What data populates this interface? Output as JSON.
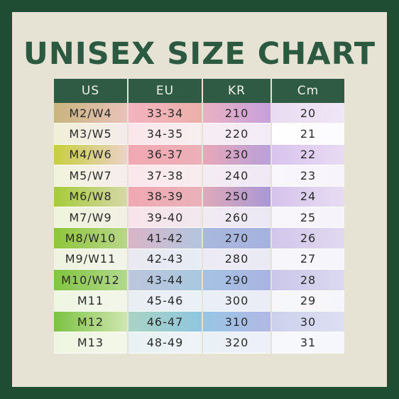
{
  "title": "UNISEX SIZE CHART",
  "table": {
    "headers": [
      "US",
      "EU",
      "KR",
      "Cm"
    ],
    "rows": [
      [
        "M2/W4",
        "33-34",
        "210",
        "20"
      ],
      [
        "M3/W5",
        "34-35",
        "220",
        "21"
      ],
      [
        "M4/W6",
        "36-37",
        "230",
        "22"
      ],
      [
        "M5/W7",
        "37-38",
        "240",
        "23"
      ],
      [
        "M6/W8",
        "38-39",
        "250",
        "24"
      ],
      [
        "M7/W9",
        "39-40",
        "260",
        "25"
      ],
      [
        "M8/W10",
        "41-42",
        "270",
        "26"
      ],
      [
        "M9/W11",
        "42-43",
        "280",
        "27"
      ],
      [
        "M10/W12",
        "43-44",
        "290",
        "28"
      ],
      [
        "M11",
        "45-46",
        "300",
        "29"
      ],
      [
        "M12",
        "46-47",
        "310",
        "30"
      ],
      [
        "M13",
        "48-49",
        "320",
        "31"
      ]
    ]
  },
  "colors": {
    "border": "#1f4d34",
    "background": "#e6e3d4",
    "title": "#2b5a41",
    "header": "#2f5a44"
  }
}
